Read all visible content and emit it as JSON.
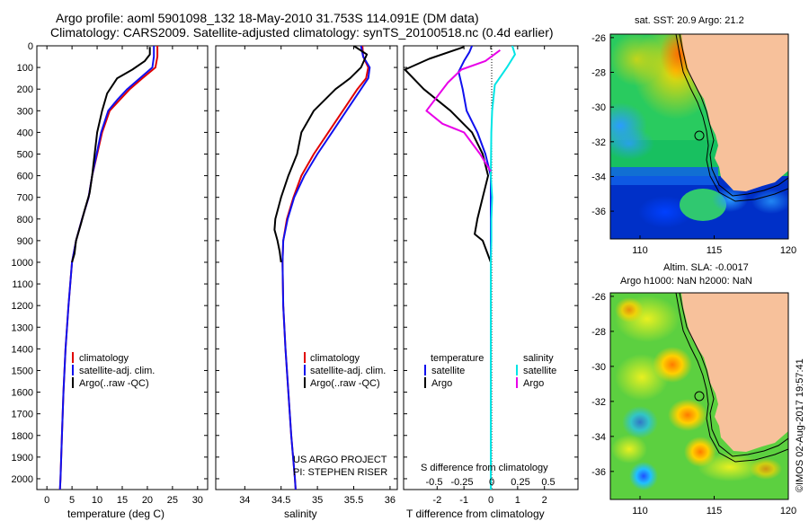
{
  "header": {
    "title_line1": "Argo profile: aoml 5901098_132 18-May-2010 31.753S 114.091E (DM data)",
    "title_line2": "Climatology: CARS2009. Satellite-adjusted climatology: synTS_20100518.nc (0.4d earlier)"
  },
  "watermark": "©IMOS 02-Aug-2017 19:57:41",
  "project_note": [
    "US ARGO PROJECT",
    "PI: STEPHEN RISER"
  ],
  "colors": {
    "climatology": "#e00000",
    "satellite": "#1010ee",
    "argo": "#000000",
    "sat_salinity": "#00e5e5",
    "argo_salinity": "#e800e8"
  },
  "chart_data": [
    {
      "type": "line",
      "name": "temperature-profile",
      "xlabel": "temperature (deg C)",
      "ylabel": "",
      "xlim": [
        -2,
        32
      ],
      "ylim": [
        2050,
        0
      ],
      "x_ticks": [
        0,
        5,
        10,
        15,
        20,
        25,
        30
      ],
      "y_ticks": [
        0,
        100,
        200,
        300,
        400,
        500,
        600,
        700,
        800,
        900,
        1000,
        1100,
        1200,
        1300,
        1400,
        1500,
        1600,
        1700,
        1800,
        1900,
        2000
      ],
      "legend": [
        "climatology",
        "satellite-adj. clim.",
        "Argo(..raw -QC)"
      ],
      "legend_position": "bottom-center",
      "series": [
        {
          "name": "climatology",
          "color": "#e00000",
          "points": [
            [
              22,
              0
            ],
            [
              22,
              50
            ],
            [
              21.6,
              100
            ],
            [
              19,
              150
            ],
            [
              16.5,
              200
            ],
            [
              14.5,
              250
            ],
            [
              12.5,
              300
            ],
            [
              11,
              400
            ],
            [
              10,
              500
            ],
            [
              9,
              600
            ],
            [
              8.3,
              700
            ],
            [
              7,
              800
            ],
            [
              5.8,
              900
            ],
            [
              5,
              1000
            ],
            [
              4.3,
              1200
            ],
            [
              3.7,
              1400
            ],
            [
              3.3,
              1600
            ],
            [
              3,
              1800
            ],
            [
              2.7,
              2000
            ],
            [
              2.6,
              2050
            ]
          ]
        },
        {
          "name": "satellite-adj. clim.",
          "color": "#1010ee",
          "points": [
            [
              21.3,
              0
            ],
            [
              21.3,
              50
            ],
            [
              21,
              100
            ],
            [
              18.5,
              150
            ],
            [
              16,
              200
            ],
            [
              14,
              250
            ],
            [
              12.2,
              300
            ],
            [
              10.8,
              400
            ],
            [
              9.9,
              500
            ],
            [
              9,
              600
            ],
            [
              8.3,
              700
            ],
            [
              7,
              800
            ],
            [
              5.8,
              900
            ],
            [
              5,
              1000
            ],
            [
              4.3,
              1200
            ],
            [
              3.7,
              1400
            ],
            [
              3.3,
              1600
            ],
            [
              3,
              1800
            ],
            [
              2.7,
              2000
            ],
            [
              2.6,
              2050
            ]
          ]
        },
        {
          "name": "Argo(..raw -QC)",
          "color": "#000000",
          "points": [
            [
              20.5,
              5
            ],
            [
              20.5,
              40
            ],
            [
              19.5,
              70
            ],
            [
              17,
              110
            ],
            [
              14,
              150
            ],
            [
              12,
              220
            ],
            [
              11,
              300
            ],
            [
              10,
              400
            ],
            [
              9.5,
              500
            ],
            [
              9,
              600
            ],
            [
              8.5,
              680
            ],
            [
              7.5,
              760
            ],
            [
              6.8,
              820
            ],
            [
              5.8,
              900
            ],
            [
              5.5,
              960
            ],
            [
              5,
              1000
            ]
          ]
        }
      ]
    },
    {
      "type": "line",
      "name": "salinity-profile",
      "xlabel": "salinity",
      "xlim": [
        33.6,
        36.1
      ],
      "ylim": [
        2050,
        0
      ],
      "x_ticks": [
        34,
        34.5,
        35,
        35.5,
        36
      ],
      "legend": [
        "climatology",
        "satellite-adj. clim.",
        "Argo(..raw -QC)"
      ],
      "legend_position": "bottom-center",
      "series": [
        {
          "name": "climatology",
          "color": "#e00000",
          "points": [
            [
              35.62,
              0
            ],
            [
              35.63,
              50
            ],
            [
              35.7,
              100
            ],
            [
              35.67,
              150
            ],
            [
              35.55,
              200
            ],
            [
              35.35,
              300
            ],
            [
              35.15,
              400
            ],
            [
              34.95,
              500
            ],
            [
              34.78,
              600
            ],
            [
              34.67,
              700
            ],
            [
              34.58,
              800
            ],
            [
              34.53,
              900
            ],
            [
              34.52,
              1000
            ],
            [
              34.53,
              1200
            ],
            [
              34.56,
              1400
            ],
            [
              34.6,
              1600
            ],
            [
              34.64,
              1800
            ],
            [
              34.69,
              2000
            ],
            [
              34.7,
              2050
            ]
          ]
        },
        {
          "name": "satellite-adj. clim.",
          "color": "#1010ee",
          "points": [
            [
              35.6,
              0
            ],
            [
              35.63,
              50
            ],
            [
              35.72,
              100
            ],
            [
              35.7,
              150
            ],
            [
              35.6,
              200
            ],
            [
              35.4,
              300
            ],
            [
              35.2,
              400
            ],
            [
              35,
              500
            ],
            [
              34.82,
              600
            ],
            [
              34.68,
              700
            ],
            [
              34.59,
              800
            ],
            [
              34.53,
              900
            ],
            [
              34.52,
              1000
            ],
            [
              34.53,
              1200
            ],
            [
              34.56,
              1400
            ],
            [
              34.6,
              1600
            ],
            [
              34.64,
              1800
            ],
            [
              34.69,
              2000
            ],
            [
              34.7,
              2050
            ]
          ]
        },
        {
          "name": "Argo(..raw -QC)",
          "color": "#000000",
          "points": [
            [
              35.5,
              0
            ],
            [
              35.68,
              40
            ],
            [
              35.6,
              100
            ],
            [
              35.45,
              150
            ],
            [
              35.25,
              200
            ],
            [
              34.95,
              300
            ],
            [
              34.78,
              400
            ],
            [
              34.72,
              500
            ],
            [
              34.6,
              600
            ],
            [
              34.5,
              700
            ],
            [
              34.42,
              800
            ],
            [
              34.41,
              850
            ],
            [
              34.45,
              900
            ],
            [
              34.48,
              950
            ],
            [
              34.5,
              1000
            ]
          ]
        }
      ]
    },
    {
      "type": "line",
      "name": "difference-from-climatology",
      "xlabel": "T difference from climatology",
      "xlabel_top": "S difference from climatology",
      "xlim": [
        -3.25,
        3.25
      ],
      "ylim": [
        2050,
        0
      ],
      "x_ticks": [
        -2,
        -1,
        0,
        1,
        2
      ],
      "s_ticks": [
        "-0.5",
        "-0.25",
        "0",
        "0.25",
        "0.5"
      ],
      "legend_temperature": [
        "temperature",
        "satellite",
        "Argo"
      ],
      "legend_salinity": [
        "salinity",
        "satellite",
        "Argo"
      ],
      "series": [
        {
          "name": "temperature satellite",
          "color": "#1010ee",
          "points": [
            [
              -0.7,
              0
            ],
            [
              -0.8,
              30
            ],
            [
              -1.0,
              70
            ],
            [
              -1.2,
              120
            ],
            [
              -1.05,
              200
            ],
            [
              -0.9,
              300
            ],
            [
              -0.5,
              400
            ],
            [
              -0.2,
              500
            ],
            [
              0,
              600
            ],
            [
              0,
              800
            ],
            [
              0,
              1000
            ],
            [
              0,
              1500
            ],
            [
              0,
              2000
            ],
            [
              0,
              2050
            ]
          ]
        },
        {
          "name": "temperature Argo",
          "color": "#000000",
          "points": [
            [
              -1,
              5
            ],
            [
              -2.3,
              60
            ],
            [
              -3.2,
              110
            ],
            [
              -2.5,
              200
            ],
            [
              -1.5,
              300
            ],
            [
              -0.7,
              400
            ],
            [
              -0.3,
              500
            ],
            [
              -0.1,
              600
            ],
            [
              -0.3,
              700
            ],
            [
              -0.5,
              800
            ],
            [
              -0.6,
              870
            ],
            [
              -0.3,
              900
            ],
            [
              0,
              1000
            ]
          ]
        },
        {
          "name": "salinity satellite",
          "color": "#00e5e5",
          "points": [
            [
              0.8,
              0
            ],
            [
              0.9,
              40
            ],
            [
              0.6,
              100
            ],
            [
              0.15,
              180
            ],
            [
              0.05,
              300
            ],
            [
              0.02,
              400
            ],
            [
              0,
              600
            ],
            [
              0.05,
              700
            ],
            [
              0.02,
              800
            ],
            [
              0.02,
              900
            ],
            [
              0,
              1000
            ],
            [
              0,
              1500
            ],
            [
              0,
              2050
            ]
          ]
        },
        {
          "name": "salinity Argo",
          "color": "#e800e8",
          "points": [
            [
              0.35,
              20
            ],
            [
              -0.2,
              70
            ],
            [
              -1.1,
              110
            ],
            [
              -1.6,
              170
            ],
            [
              -2.4,
              300
            ],
            [
              -1.8,
              360
            ],
            [
              -1,
              400
            ],
            [
              -0.4,
              500
            ],
            [
              0,
              580
            ]
          ]
        }
      ]
    },
    {
      "type": "heatmap",
      "name": "sst-map",
      "title": "sat. SST: 20.9 Argo: 21.2",
      "xlim": [
        108,
        120
      ],
      "ylim": [
        -37.6,
        -25.8
      ],
      "x_ticks": [
        110,
        115,
        120
      ],
      "y_ticks": [
        -26,
        -28,
        -30,
        -32,
        -34,
        -36
      ],
      "marker": [
        114.091,
        -31.753
      ]
    },
    {
      "type": "heatmap",
      "name": "sla-map",
      "title": "Altim. SLA: -0.0017",
      "title_line2": "Argo h1000: NaN h2000: NaN",
      "xlim": [
        108,
        120
      ],
      "ylim": [
        -37.6,
        -25.8
      ],
      "x_ticks": [
        110,
        115,
        120
      ],
      "y_ticks": [
        -26,
        -28,
        -30,
        -32,
        -34,
        -36
      ],
      "marker": [
        114.091,
        -31.753
      ]
    }
  ]
}
